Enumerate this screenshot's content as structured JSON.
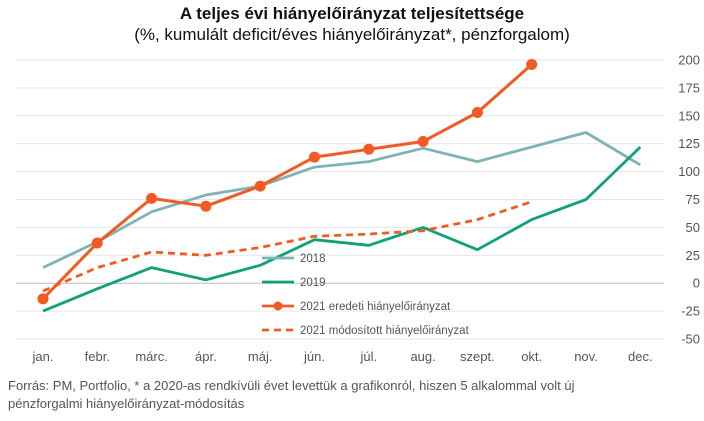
{
  "chart_data": {
    "type": "line",
    "title": "A teljes évi hiányelőirányzat teljesítettsége",
    "subtitle": "(%, kumulált deficit/éves hiányelőirányzat*, pénzforgalom)",
    "categories": [
      "jan.",
      "febr.",
      "márc.",
      "ápr.",
      "máj.",
      "jún.",
      "júl.",
      "aug.",
      "szept.",
      "okt.",
      "nov.",
      "dec."
    ],
    "ylim": [
      -50,
      200
    ],
    "yticks": [
      -50,
      -25,
      0,
      25,
      50,
      75,
      100,
      125,
      150,
      175,
      200
    ],
    "grid": true,
    "legend_position": "center",
    "series": [
      {
        "name": "2018",
        "color": "#7fb3b5",
        "style": "solid",
        "marker": false,
        "values": [
          14,
          37,
          64,
          79,
          87,
          104,
          109,
          121,
          109,
          122,
          135,
          106
        ]
      },
      {
        "name": "2019",
        "color": "#12a07c",
        "style": "solid",
        "marker": false,
        "values": [
          -25,
          -5,
          14,
          3,
          16,
          39,
          34,
          50,
          30,
          57,
          75,
          122
        ]
      },
      {
        "name": "2021 eredeti hiányelőirányzat",
        "color": "#f15a22",
        "style": "solid",
        "marker": true,
        "values": [
          -14,
          36,
          76,
          69,
          87,
          113,
          120,
          127,
          153,
          196,
          null,
          null
        ]
      },
      {
        "name": "2021 módosított hiányelőirányzat",
        "color": "#f15a22",
        "style": "dashed",
        "marker": false,
        "values": [
          -7,
          14,
          28,
          25,
          32,
          42,
          44,
          47,
          57,
          73,
          null,
          null
        ]
      }
    ]
  },
  "source_text": "Forrás: PM, Portfolio, * a 2020-as rendkívüli évet levettük a grafikonról, hiszen 5 alkalommal volt új pénzforgalmi hiányelőirányzat-módosítás"
}
